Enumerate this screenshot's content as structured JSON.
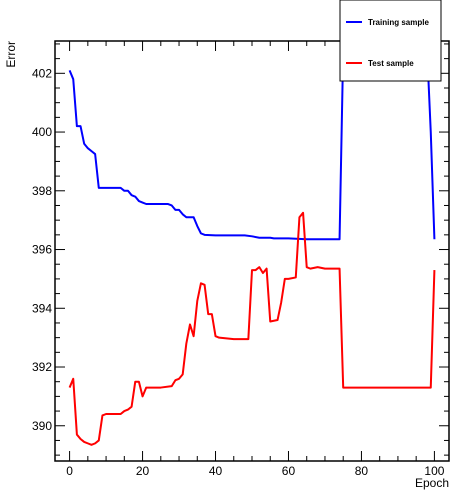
{
  "chart_data": {
    "type": "line",
    "xlabel": "Epoch",
    "ylabel": "Error",
    "xlim": [
      -4,
      104
    ],
    "ylim": [
      388.8,
      403.1
    ],
    "xticks": [
      0,
      20,
      40,
      60,
      80,
      100
    ],
    "yticks": [
      390,
      392,
      394,
      396,
      398,
      400,
      402
    ],
    "grid": false,
    "legend_position": "top-right",
    "series": [
      {
        "name": "Training sample",
        "color": "#0000ff",
        "points": [
          [
            0,
            402.1
          ],
          [
            1,
            401.8
          ],
          [
            2,
            400.2
          ],
          [
            3,
            400.2
          ],
          [
            4,
            399.6
          ],
          [
            5,
            399.45
          ],
          [
            6,
            399.35
          ],
          [
            7,
            399.25
          ],
          [
            8,
            398.1
          ],
          [
            10,
            398.1
          ],
          [
            12,
            398.1
          ],
          [
            14,
            398.1
          ],
          [
            15,
            398.0
          ],
          [
            16,
            398.0
          ],
          [
            17,
            397.85
          ],
          [
            18,
            397.8
          ],
          [
            19,
            397.65
          ],
          [
            20,
            397.6
          ],
          [
            21,
            397.55
          ],
          [
            22,
            397.55
          ],
          [
            25,
            397.55
          ],
          [
            27,
            397.55
          ],
          [
            28,
            397.5
          ],
          [
            29,
            397.35
          ],
          [
            30,
            397.35
          ],
          [
            31,
            397.2
          ],
          [
            32,
            397.1
          ],
          [
            34,
            397.1
          ],
          [
            35,
            396.8
          ],
          [
            36,
            396.55
          ],
          [
            37,
            396.5
          ],
          [
            40,
            396.48
          ],
          [
            45,
            396.48
          ],
          [
            48,
            396.48
          ],
          [
            50,
            396.45
          ],
          [
            52,
            396.4
          ],
          [
            55,
            396.4
          ],
          [
            56,
            396.38
          ],
          [
            60,
            396.38
          ],
          [
            65,
            396.35
          ],
          [
            70,
            396.35
          ],
          [
            74,
            396.35
          ],
          [
            75,
            402.8
          ],
          [
            85,
            402.8
          ],
          [
            98,
            402.8
          ],
          [
            99,
            400.0
          ],
          [
            100,
            396.35
          ]
        ]
      },
      {
        "name": "Test sample",
        "color": "#ff0000",
        "points": [
          [
            0,
            391.3
          ],
          [
            1,
            391.6
          ],
          [
            2,
            389.7
          ],
          [
            3,
            389.55
          ],
          [
            4,
            389.45
          ],
          [
            5,
            389.4
          ],
          [
            6,
            389.35
          ],
          [
            7,
            389.4
          ],
          [
            8,
            389.5
          ],
          [
            9,
            390.35
          ],
          [
            10,
            390.4
          ],
          [
            14,
            390.4
          ],
          [
            15,
            390.5
          ],
          [
            16,
            390.55
          ],
          [
            17,
            390.65
          ],
          [
            18,
            391.5
          ],
          [
            19,
            391.5
          ],
          [
            20,
            391.0
          ],
          [
            21,
            391.3
          ],
          [
            22,
            391.3
          ],
          [
            25,
            391.3
          ],
          [
            28,
            391.35
          ],
          [
            29,
            391.55
          ],
          [
            30,
            391.6
          ],
          [
            31,
            391.75
          ],
          [
            32,
            392.8
          ],
          [
            33,
            393.45
          ],
          [
            34,
            393.05
          ],
          [
            35,
            394.25
          ],
          [
            36,
            394.85
          ],
          [
            37,
            394.8
          ],
          [
            38,
            393.8
          ],
          [
            39,
            393.8
          ],
          [
            40,
            393.05
          ],
          [
            41,
            393.0
          ],
          [
            45,
            392.95
          ],
          [
            49,
            392.95
          ],
          [
            50,
            395.3
          ],
          [
            51,
            395.3
          ],
          [
            52,
            395.4
          ],
          [
            53,
            395.2
          ],
          [
            54,
            395.35
          ],
          [
            55,
            393.55
          ],
          [
            57,
            393.6
          ],
          [
            58,
            394.2
          ],
          [
            59,
            395.0
          ],
          [
            60,
            395.0
          ],
          [
            62,
            395.05
          ],
          [
            63,
            397.1
          ],
          [
            64,
            397.25
          ],
          [
            65,
            395.4
          ],
          [
            66,
            395.35
          ],
          [
            68,
            395.4
          ],
          [
            70,
            395.35
          ],
          [
            74,
            395.35
          ],
          [
            75,
            391.3
          ],
          [
            85,
            391.3
          ],
          [
            99,
            391.3
          ],
          [
            100,
            395.3
          ]
        ]
      }
    ]
  }
}
